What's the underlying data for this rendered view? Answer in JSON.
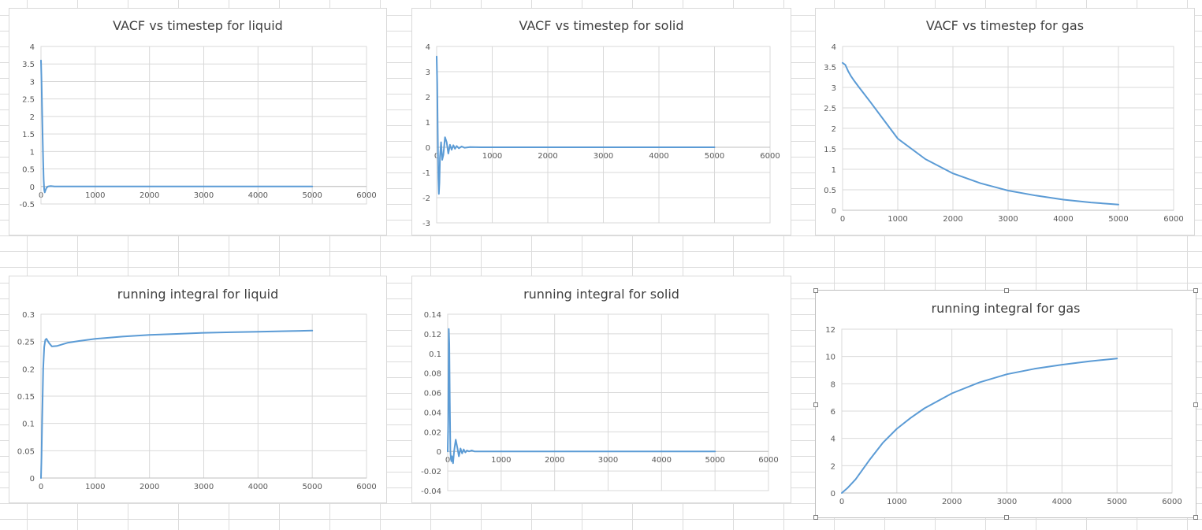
{
  "colors": {
    "series": "#5b9bd5",
    "grid": "#d9d9d9",
    "text": "#595959"
  },
  "chart_data": [
    {
      "id": "vacf-liquid",
      "type": "line",
      "title": "VACF vs timestep for liquid",
      "xlabel": "",
      "ylabel": "",
      "xlim": [
        0,
        6000
      ],
      "ylim": [
        -0.5,
        4
      ],
      "xticks": [
        0,
        1000,
        2000,
        3000,
        4000,
        5000,
        6000
      ],
      "yticks": [
        -0.5,
        0,
        0.5,
        1,
        1.5,
        2,
        2.5,
        3,
        3.5,
        4
      ],
      "grid": true,
      "legend": "none",
      "series": [
        {
          "x": [
            0,
            10,
            20,
            30,
            40,
            50,
            60,
            70,
            80,
            100,
            130,
            180,
            250,
            400,
            1000,
            2000,
            3000,
            4000,
            5000
          ],
          "y": [
            3.6,
            3.0,
            2.2,
            1.4,
            0.7,
            0.2,
            -0.1,
            -0.17,
            -0.12,
            -0.04,
            0.0,
            0.01,
            0.0,
            0.0,
            0.0,
            0.0,
            0.0,
            0.0,
            0.0
          ]
        }
      ]
    },
    {
      "id": "vacf-solid",
      "type": "line",
      "title": "VACF vs timestep for solid",
      "xlabel": "",
      "ylabel": "",
      "xlim": [
        0,
        6000
      ],
      "ylim": [
        -3,
        4
      ],
      "xticks": [
        0,
        1000,
        2000,
        3000,
        4000,
        5000,
        6000
      ],
      "yticks": [
        -3,
        -2,
        -1,
        0,
        1,
        2,
        3,
        4
      ],
      "grid": true,
      "legend": "none",
      "series": [
        {
          "x": [
            0,
            10,
            20,
            30,
            40,
            50,
            60,
            80,
            100,
            120,
            150,
            180,
            210,
            240,
            270,
            300,
            330,
            360,
            400,
            450,
            500,
            600,
            800,
            1000,
            2000,
            3000,
            4000,
            5000
          ],
          "y": [
            3.6,
            2.5,
            0.5,
            -1.2,
            -1.85,
            -1.4,
            -0.4,
            0.2,
            -0.5,
            -0.3,
            0.4,
            0.2,
            -0.25,
            0.1,
            -0.1,
            0.08,
            -0.06,
            0.05,
            -0.04,
            0.03,
            -0.02,
            0.01,
            0.0,
            0.0,
            0.0,
            0.0,
            0.0,
            0.0
          ]
        }
      ]
    },
    {
      "id": "vacf-gas",
      "type": "line",
      "title": "VACF vs timestep for gas",
      "xlabel": "",
      "ylabel": "",
      "xlim": [
        0,
        6000
      ],
      "ylim": [
        0,
        4
      ],
      "xticks": [
        0,
        1000,
        2000,
        3000,
        4000,
        5000,
        6000
      ],
      "yticks": [
        0,
        0.5,
        1,
        1.5,
        2,
        2.5,
        3,
        3.5,
        4
      ],
      "grid": true,
      "legend": "none",
      "series": [
        {
          "x": [
            0,
            50,
            100,
            150,
            200,
            300,
            500,
            750,
            1000,
            1500,
            2000,
            2500,
            3000,
            3500,
            4000,
            4500,
            5000
          ],
          "y": [
            3.6,
            3.55,
            3.4,
            3.28,
            3.18,
            3.0,
            2.65,
            2.2,
            1.75,
            1.25,
            0.9,
            0.66,
            0.48,
            0.36,
            0.26,
            0.19,
            0.14
          ]
        }
      ]
    },
    {
      "id": "integral-liquid",
      "type": "line",
      "title": "running integral for liquid",
      "xlabel": "",
      "ylabel": "",
      "xlim": [
        0,
        6000
      ],
      "ylim": [
        0,
        0.3
      ],
      "xticks": [
        0,
        1000,
        2000,
        3000,
        4000,
        5000,
        6000
      ],
      "yticks": [
        0,
        0.05,
        0.1,
        0.15,
        0.2,
        0.25,
        0.3
      ],
      "grid": true,
      "legend": "none",
      "series": [
        {
          "x": [
            0,
            10,
            20,
            30,
            40,
            60,
            80,
            100,
            150,
            200,
            300,
            500,
            700,
            1000,
            1500,
            2000,
            2500,
            3000,
            3500,
            4000,
            4500,
            5000
          ],
          "y": [
            0.0,
            0.04,
            0.1,
            0.15,
            0.2,
            0.24,
            0.253,
            0.255,
            0.247,
            0.241,
            0.242,
            0.248,
            0.251,
            0.255,
            0.259,
            0.262,
            0.264,
            0.266,
            0.267,
            0.268,
            0.269,
            0.27
          ]
        }
      ]
    },
    {
      "id": "integral-solid",
      "type": "line",
      "title": "running integral for solid",
      "xlabel": "",
      "ylabel": "",
      "xlim": [
        0,
        6000
      ],
      "ylim": [
        -0.04,
        0.14
      ],
      "xticks": [
        0,
        1000,
        2000,
        3000,
        4000,
        5000,
        6000
      ],
      "yticks": [
        -0.04,
        -0.02,
        0,
        0.02,
        0.04,
        0.06,
        0.08,
        0.1,
        0.12,
        0.14
      ],
      "grid": true,
      "legend": "none",
      "series": [
        {
          "x": [
            0,
            10,
            20,
            30,
            40,
            50,
            60,
            70,
            80,
            100,
            120,
            150,
            180,
            210,
            240,
            270,
            300,
            330,
            360,
            400,
            450,
            500,
            600,
            800,
            1000,
            2000,
            3000,
            4000,
            5000
          ],
          "y": [
            0.0,
            0.03,
            0.125,
            0.11,
            0.05,
            0.0,
            -0.008,
            -0.01,
            -0.005,
            -0.012,
            0.0,
            0.012,
            0.004,
            -0.005,
            0.003,
            -0.002,
            0.002,
            -0.001,
            0.001,
            0.0,
            0.001,
            0.0,
            0.0,
            0.0,
            0.0,
            0.0,
            0.0,
            0.0,
            0.0
          ]
        }
      ]
    },
    {
      "id": "integral-gas",
      "type": "line",
      "title": "running integral for gas",
      "xlabel": "",
      "ylabel": "",
      "xlim": [
        0,
        6000
      ],
      "ylim": [
        0,
        12
      ],
      "xticks": [
        0,
        1000,
        2000,
        3000,
        4000,
        5000,
        6000
      ],
      "yticks": [
        0,
        2,
        4,
        6,
        8,
        10,
        12
      ],
      "grid": true,
      "legend": "none",
      "series": [
        {
          "x": [
            0,
            100,
            250,
            500,
            750,
            1000,
            1250,
            1500,
            2000,
            2500,
            3000,
            3500,
            4000,
            4500,
            5000
          ],
          "y": [
            0.0,
            0.35,
            1.0,
            2.4,
            3.7,
            4.7,
            5.5,
            6.2,
            7.3,
            8.1,
            8.7,
            9.1,
            9.4,
            9.65,
            9.85
          ]
        }
      ]
    }
  ]
}
